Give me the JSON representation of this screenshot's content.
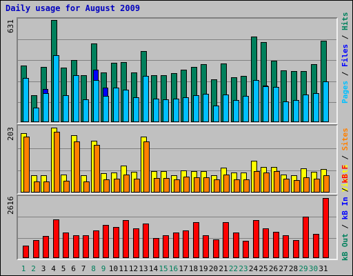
{
  "title": "Daily usage for August 2009",
  "colors": {
    "hits": "#00805C",
    "files": "#0000FF",
    "pages": "#00C0FF",
    "visits": "#FFFF00",
    "sites": "#FF8000",
    "kb_in": "#FF0000",
    "day_weekday": "#000000",
    "day_weekend": "#00805C",
    "title": "#0000C0"
  },
  "right_legend_top": [
    {
      "text": "Pages",
      "color": "#00C0FF"
    },
    {
      "text": " / ",
      "color": "#000000"
    },
    {
      "text": "Files",
      "color": "#0000FF"
    },
    {
      "text": " / ",
      "color": "#000000"
    },
    {
      "text": "Hits",
      "color": "#00805C"
    }
  ],
  "right_legend_mid": [
    {
      "text": "Visits",
      "color": "#FFFF00"
    },
    {
      "text": " / ",
      "color": "#000000"
    },
    {
      "text": "Sites",
      "color": "#FF8000"
    }
  ],
  "right_legend_bot": [
    {
      "text": "kB Out",
      "color": "#00805C"
    },
    {
      "text": " / ",
      "color": "#000000"
    },
    {
      "text": "kB In",
      "color": "#0000FF"
    },
    {
      "text": " / ",
      "color": "#000000"
    },
    {
      "text": "kB F",
      "color": "#FF0000"
    }
  ],
  "chart_data": [
    {
      "type": "bar",
      "title": "Daily usage for August 2009",
      "ylabel": "Pages / Files / Hits",
      "ymax_label": "631",
      "ylim": [
        0,
        631
      ],
      "categories": [
        "1",
        "2",
        "3",
        "4",
        "5",
        "6",
        "7",
        "8",
        "9",
        "10",
        "11",
        "12",
        "13",
        "14",
        "15",
        "16",
        "17",
        "18",
        "19",
        "20",
        "21",
        "22",
        "23",
        "24",
        "25",
        "26",
        "27",
        "28",
        "29",
        "30",
        "31"
      ],
      "series": [
        {
          "name": "Hits",
          "values": [
            348,
            168,
            340,
            631,
            335,
            385,
            290,
            488,
            306,
            366,
            369,
            308,
            440,
            292,
            292,
            303,
            322,
            340,
            358,
            264,
            363,
            276,
            284,
            530,
            495,
            380,
            319,
            316,
            316,
            358,
            501
          ]
        },
        {
          "name": "Files",
          "values": [
            90,
            80,
            205,
            410,
            85,
            242,
            92,
            325,
            215,
            135,
            120,
            87,
            270,
            90,
            88,
            120,
            90,
            95,
            100,
            85,
            128,
            115,
            120,
            260,
            224,
            210,
            70,
            75,
            85,
            95,
            120
          ]
        },
        {
          "name": "Pages",
          "values": [
            271,
            90,
            180,
            413,
            165,
            290,
            139,
            260,
            162,
            215,
            200,
            154,
            285,
            145,
            140,
            147,
            154,
            165,
            173,
            102,
            172,
            137,
            160,
            262,
            220,
            218,
            127,
            135,
            172,
            180,
            252
          ]
        }
      ]
    },
    {
      "type": "bar",
      "ylabel": "Visits / Sites",
      "ymax_label": "203",
      "ylim": [
        0,
        203
      ],
      "categories": [
        "1",
        "2",
        "3",
        "4",
        "5",
        "6",
        "7",
        "8",
        "9",
        "10",
        "11",
        "12",
        "13",
        "14",
        "15",
        "16",
        "17",
        "18",
        "19",
        "20",
        "21",
        "22",
        "23",
        "24",
        "25",
        "26",
        "27",
        "28",
        "29",
        "30",
        "31"
      ],
      "series": [
        {
          "name": "Visits",
          "values": [
            185,
            53,
            53,
            203,
            57,
            180,
            53,
            162,
            60,
            62,
            85,
            65,
            176,
            68,
            67,
            55,
            70,
            68,
            67,
            55,
            78,
            62,
            63,
            100,
            80,
            80,
            57,
            53,
            75,
            65,
            73
          ]
        },
        {
          "name": "Sites",
          "values": [
            175,
            35,
            35,
            190,
            36,
            160,
            35,
            148,
            42,
            43,
            56,
            44,
            160,
            45,
            45,
            40,
            50,
            47,
            48,
            42,
            56,
            42,
            42,
            66,
            62,
            68,
            44,
            38,
            48,
            44,
            55
          ]
        }
      ]
    },
    {
      "type": "bar",
      "ylabel": "kB F / kB In / kB Out",
      "ymax_label": "2616",
      "ylim": [
        0,
        2616
      ],
      "categories": [
        "1",
        "2",
        "3",
        "4",
        "5",
        "6",
        "7",
        "8",
        "9",
        "10",
        "11",
        "12",
        "13",
        "14",
        "15",
        "16",
        "17",
        "18",
        "19",
        "20",
        "21",
        "22",
        "23",
        "24",
        "25",
        "26",
        "27",
        "28",
        "29",
        "30",
        "31"
      ],
      "series": [
        {
          "name": "kB F",
          "values": [
            550,
            780,
            975,
            1670,
            1100,
            1000,
            1000,
            1200,
            1450,
            1350,
            1650,
            1300,
            1500,
            860,
            1000,
            1100,
            1200,
            1550,
            1000,
            800,
            1550,
            1100,
            740,
            1650,
            1300,
            1150,
            1000,
            780,
            1800,
            1050,
            2616
          ]
        }
      ]
    }
  ]
}
